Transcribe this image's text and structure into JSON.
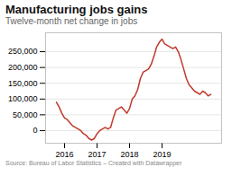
{
  "chart_data": {
    "type": "line",
    "title": "Manufacturing jobs gains",
    "subtitle": "Twelve-month net change in jobs",
    "source": "Source: Bureau of Labor Statistics – Created with Datawrapper",
    "color": "#c0392b",
    "categories": [
      null,
      null,
      null,
      "2016",
      null,
      null,
      null,
      null,
      null,
      null,
      null,
      null,
      null,
      null,
      null,
      "2017",
      null,
      null,
      null,
      null,
      null,
      null,
      null,
      null,
      null,
      null,
      null,
      "2018",
      null,
      null,
      null,
      null,
      null,
      null,
      null,
      null,
      null,
      null,
      null,
      "2019",
      null,
      null,
      null,
      null,
      null,
      null,
      null,
      null,
      null,
      null,
      null,
      null,
      null,
      null,
      null,
      null,
      null,
      null
    ],
    "values": [
      90000,
      75000,
      55000,
      40000,
      35000,
      25000,
      15000,
      10000,
      5000,
      0,
      -10000,
      -15000,
      -25000,
      -30000,
      -25000,
      -10000,
      0,
      5000,
      10000,
      5000,
      10000,
      40000,
      65000,
      70000,
      75000,
      65000,
      55000,
      70000,
      100000,
      110000,
      130000,
      165000,
      185000,
      190000,
      195000,
      210000,
      235000,
      265000,
      280000,
      290000,
      275000,
      270000,
      265000,
      260000,
      265000,
      250000,
      225000,
      195000,
      165000,
      145000,
      135000,
      125000,
      120000,
      115000,
      125000,
      120000,
      110000,
      115000
    ],
    "ylim": [
      -40000,
      310000
    ],
    "yticks": [
      0,
      {
        "value": 50000,
        "label": "50,000"
      },
      {
        "value": 100000,
        "label": "100,000"
      },
      {
        "value": 150000,
        "label": "150,000"
      },
      {
        "value": 200000,
        "label": "200,000"
      },
      {
        "value": 250000,
        "label": "250,000"
      }
    ],
    "grid": true
  }
}
